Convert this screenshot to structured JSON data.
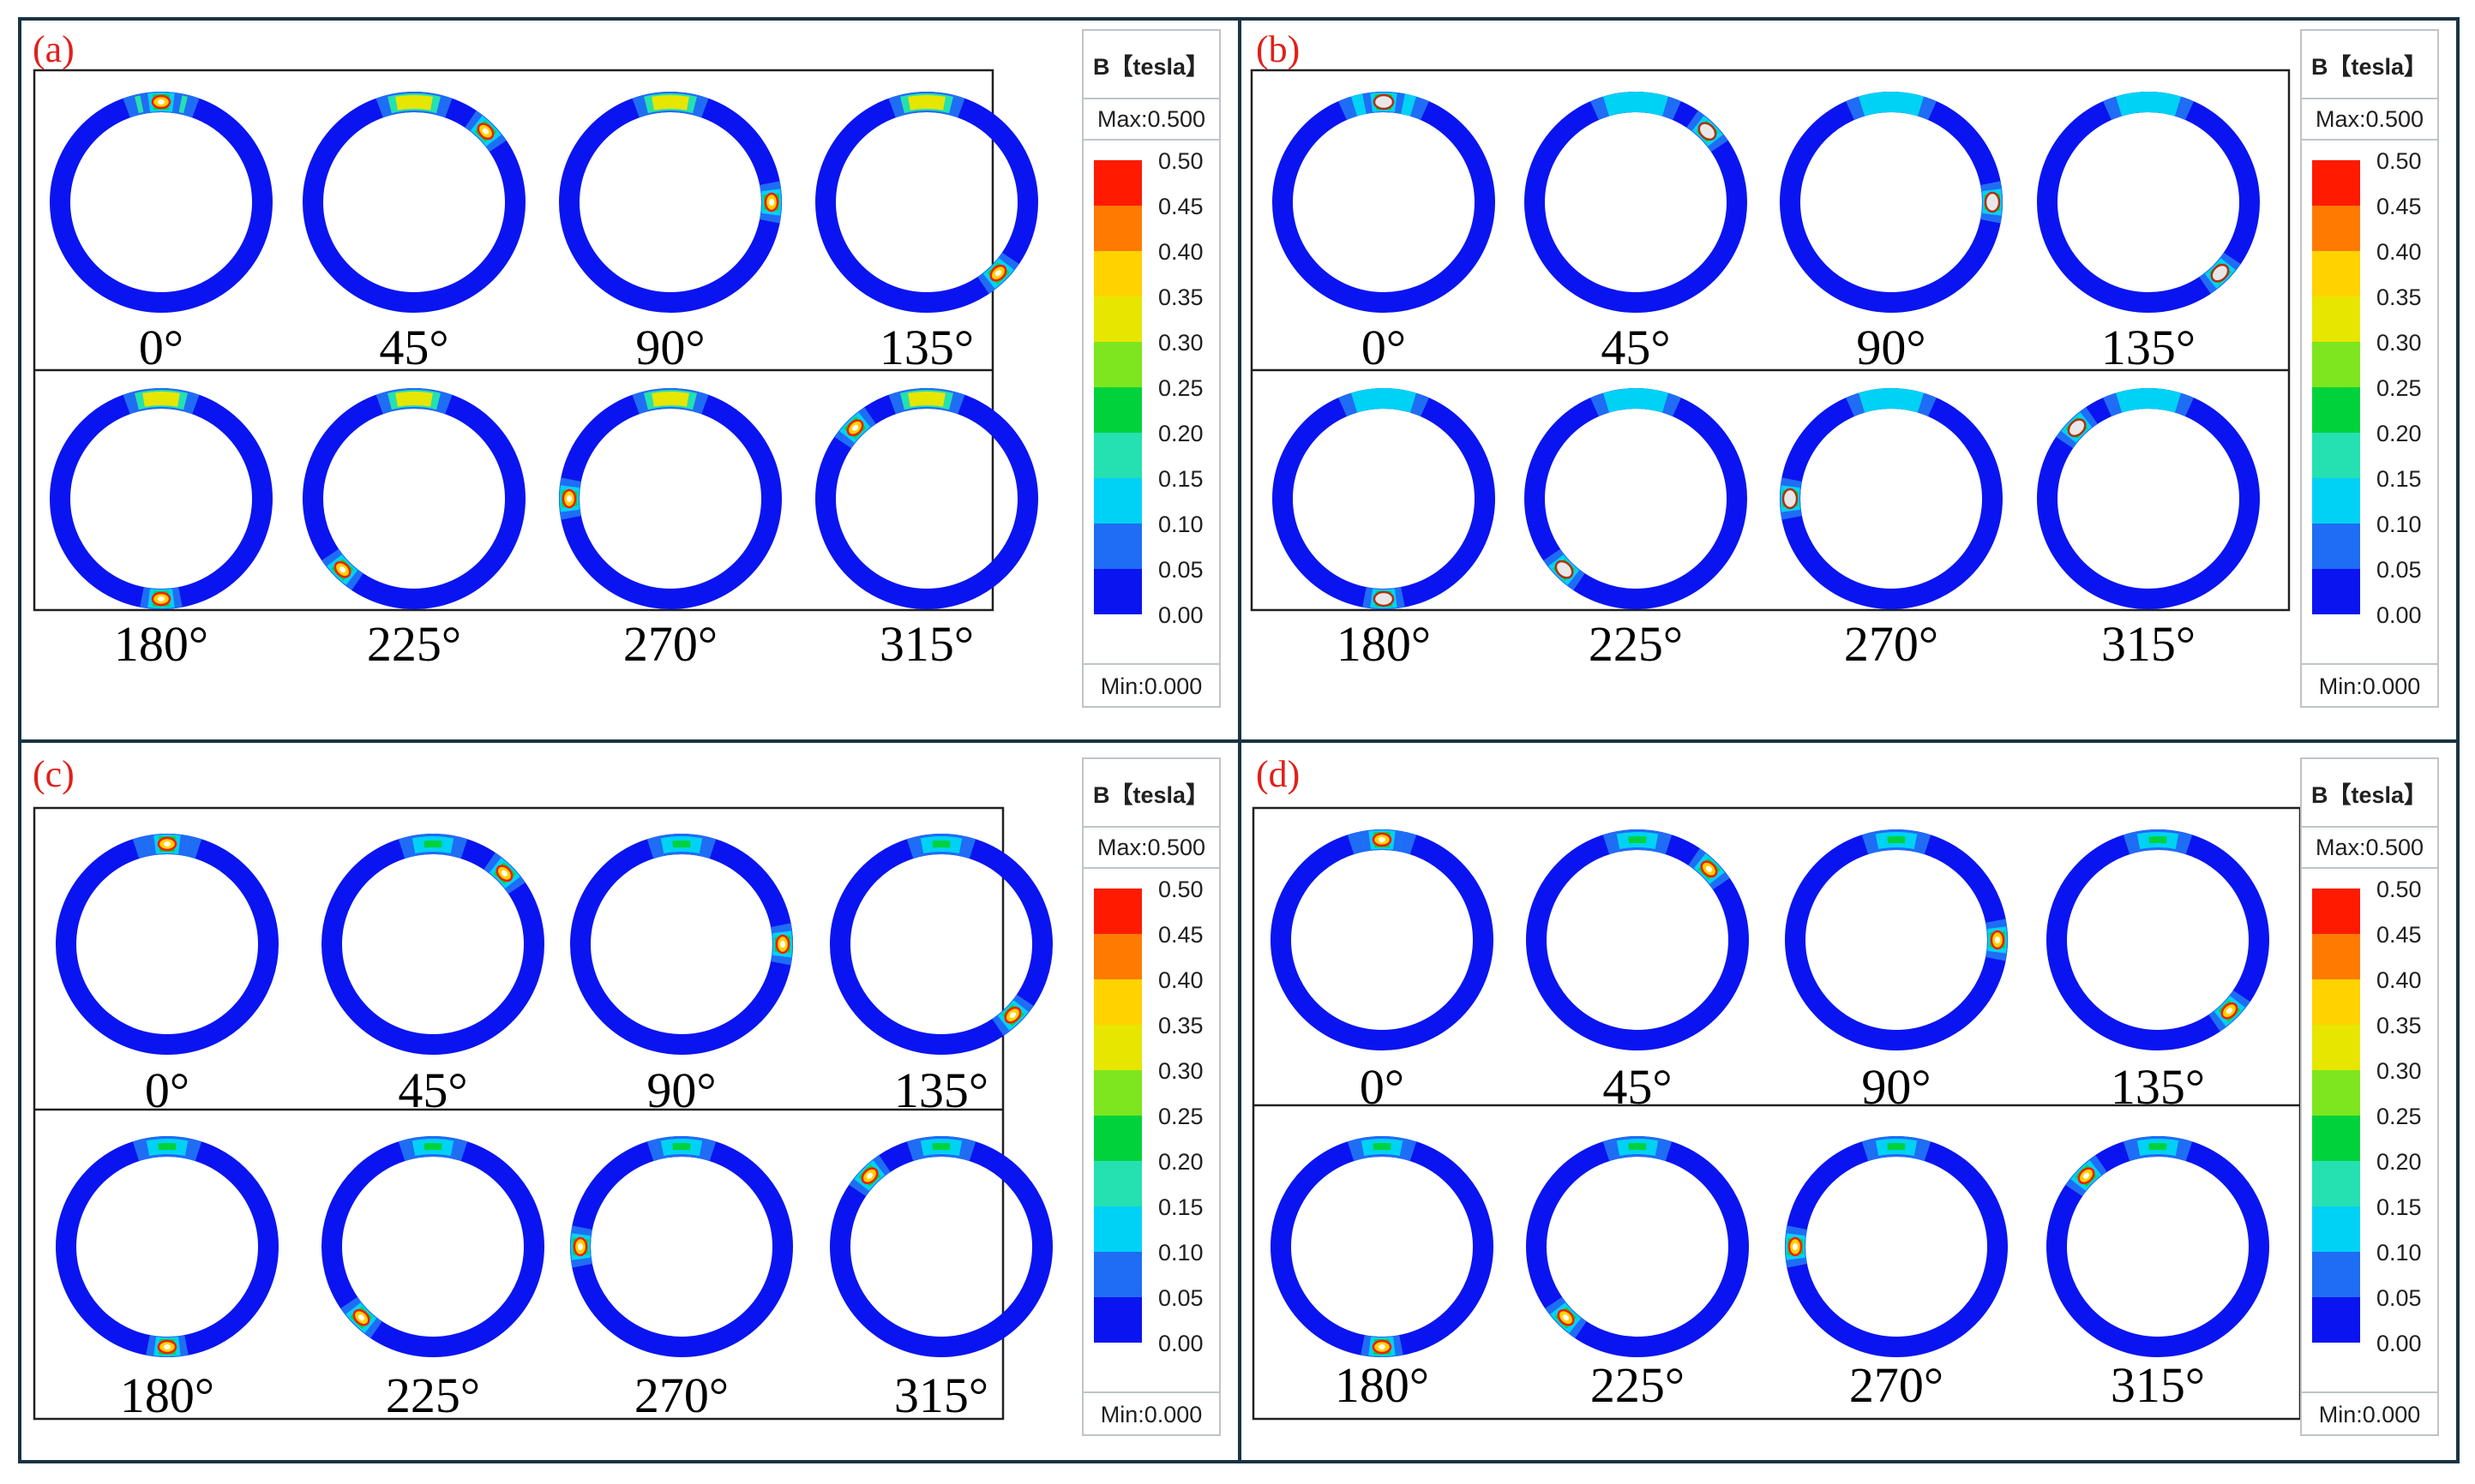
{
  "colors": {
    "frame": "#1a3342",
    "ring": "#0a14f0",
    "panel_label": "#e0201a",
    "scale": [
      "#0a14f0",
      "#1f6df5",
      "#00d2f5",
      "#25e0b0",
      "#00d23c",
      "#7de61e",
      "#e6e600",
      "#ffd200",
      "#ff7a00",
      "#ff1a00"
    ]
  },
  "legend": {
    "title": "B【tesla】",
    "max": "Max:0.500",
    "min": "Min:0.000",
    "ticks": [
      "0.50",
      "0.45",
      "0.40",
      "0.35",
      "0.30",
      "0.25",
      "0.20",
      "0.15",
      "0.10",
      "0.05",
      "0.00"
    ]
  },
  "panels": [
    {
      "label": "(a)",
      "rows": [
        {
          "angles": [
            "0°",
            "45°",
            "90°",
            "135°"
          ]
        },
        {
          "angles": [
            "180°",
            "225°",
            "270°",
            "315°"
          ]
        }
      ]
    },
    {
      "label": "(b)",
      "rows": [
        {
          "angles": [
            "0°",
            "45°",
            "90°",
            "135°"
          ]
        },
        {
          "angles": [
            "180°",
            "225°",
            "270°",
            "315°"
          ]
        }
      ]
    },
    {
      "label": "(c)",
      "rows": [
        {
          "angles": [
            "0°",
            "45°",
            "90°",
            "135°"
          ]
        },
        {
          "angles": [
            "180°",
            "225°",
            "270°",
            "315°"
          ]
        }
      ]
    },
    {
      "label": "(d)",
      "rows": [
        {
          "angles": [
            "0°",
            "45°",
            "90°",
            "135°"
          ]
        },
        {
          "angles": [
            "180°",
            "225°",
            "270°",
            "315°"
          ]
        }
      ]
    }
  ]
}
